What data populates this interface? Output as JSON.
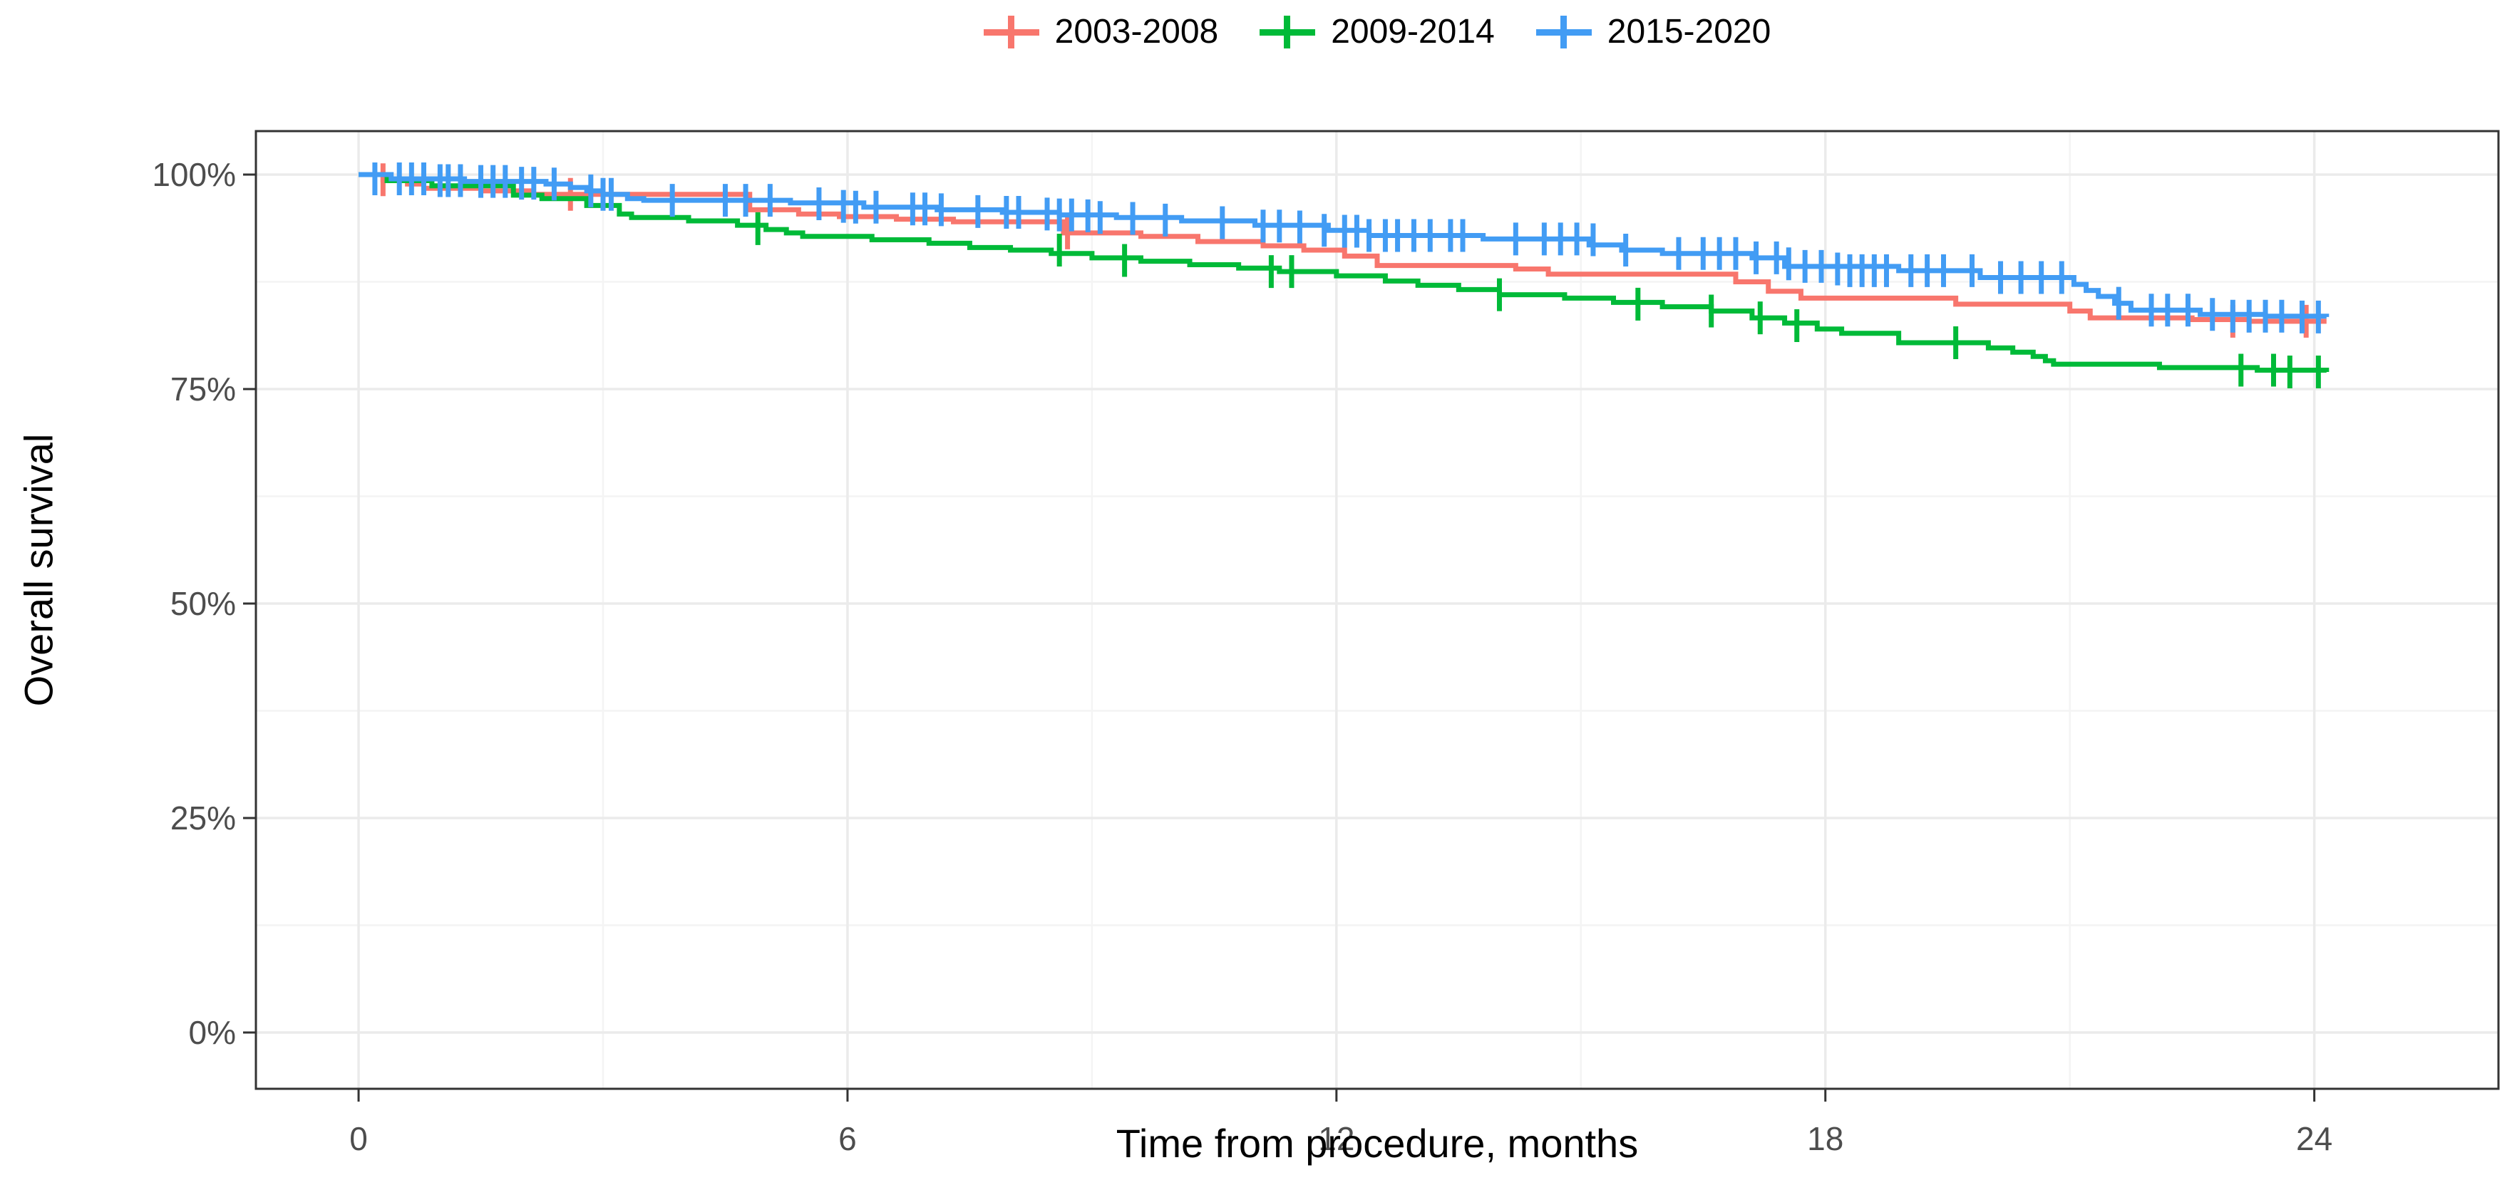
{
  "page": {
    "background": "#FFFFFF"
  },
  "legend": {
    "items": [
      {
        "label": "2003-2008",
        "color": "#F8766D"
      },
      {
        "label": "2009-2014",
        "color": "#00BA38"
      },
      {
        "label": "2015-2020",
        "color": "#429CF4"
      }
    ]
  },
  "colors": {
    "panel_border": "#333333",
    "grid_major": "#EBEBEB",
    "grid_minor": "#F4F4F4",
    "tick_mark": "#333333",
    "tick_label": "#4D4D4D",
    "axis_title": "#000000"
  },
  "chart_data": {
    "type": "line",
    "subtype": "kaplan-meier-step-survival",
    "title": "",
    "xlabel": "Time from procedure, months",
    "ylabel": "Overall survival",
    "legend_position": "top",
    "grid": "on",
    "xlim": [
      -1.26,
      26.26
    ],
    "ylim": [
      -6.56,
      105.07
    ],
    "x_ticks": [
      {
        "value": 0,
        "label": "0"
      },
      {
        "value": 6,
        "label": "6"
      },
      {
        "value": 12,
        "label": "12"
      },
      {
        "value": 18,
        "label": "18"
      },
      {
        "value": 24,
        "label": "24"
      }
    ],
    "x_minor": [
      3,
      9,
      15,
      21
    ],
    "y_ticks": [
      {
        "value": 0,
        "label": "0%"
      },
      {
        "value": 25,
        "label": "25%"
      },
      {
        "value": 50,
        "label": "50%"
      },
      {
        "value": 75,
        "label": "75%"
      },
      {
        "value": 100,
        "label": "100%"
      }
    ],
    "y_minor": [
      12.5,
      37.5,
      62.5,
      87.5
    ],
    "series": [
      {
        "name": "2003-2008",
        "color": "#F8766D",
        "points": [
          [
            0,
            100
          ],
          [
            0.3,
            99.4
          ],
          [
            0.6,
            98.9
          ],
          [
            0.8,
            98.4
          ],
          [
            1.5,
            98.1
          ],
          [
            2.1,
            97.7
          ],
          [
            4.8,
            95.9
          ],
          [
            5.4,
            95.4
          ],
          [
            5.9,
            95.1
          ],
          [
            6.6,
            94.8
          ],
          [
            7.3,
            94.5
          ],
          [
            8.65,
            93.2
          ],
          [
            9.6,
            92.8
          ],
          [
            10.3,
            92.2
          ],
          [
            11.1,
            91.7
          ],
          [
            11.6,
            91.2
          ],
          [
            12.1,
            90.5
          ],
          [
            12.5,
            89.4
          ],
          [
            14.2,
            89.0
          ],
          [
            14.6,
            88.4
          ],
          [
            16.9,
            87.5
          ],
          [
            17.3,
            86.4
          ],
          [
            17.7,
            85.6
          ],
          [
            19.6,
            84.9
          ],
          [
            21.0,
            84.1
          ],
          [
            21.25,
            83.3
          ],
          [
            22.5,
            83.1
          ],
          [
            23.2,
            82.9
          ],
          [
            24.15,
            82.9
          ]
        ],
        "censors": [
          [
            0.3,
            99.4
          ],
          [
            2.6,
            97.7
          ],
          [
            8.7,
            93.2
          ],
          [
            23.0,
            82.9
          ],
          [
            23.9,
            82.9
          ]
        ]
      },
      {
        "name": "2009-2014",
        "color": "#00BA38",
        "points": [
          [
            0,
            100
          ],
          [
            0.35,
            99.3
          ],
          [
            0.9,
            98.7
          ],
          [
            1.9,
            97.6
          ],
          [
            2.25,
            97.2
          ],
          [
            2.8,
            96.4
          ],
          [
            3.2,
            95.4
          ],
          [
            3.35,
            95.0
          ],
          [
            4.05,
            94.6
          ],
          [
            4.65,
            94.1
          ],
          [
            5.0,
            93.6
          ],
          [
            5.25,
            93.2
          ],
          [
            5.45,
            92.8
          ],
          [
            6.3,
            92.4
          ],
          [
            7.0,
            92.0
          ],
          [
            7.5,
            91.5
          ],
          [
            8.0,
            91.2
          ],
          [
            8.5,
            90.8
          ],
          [
            9.0,
            90.3
          ],
          [
            9.6,
            89.9
          ],
          [
            10.2,
            89.5
          ],
          [
            10.8,
            89.1
          ],
          [
            11.3,
            88.7
          ],
          [
            12.0,
            88.2
          ],
          [
            12.6,
            87.6
          ],
          [
            13.0,
            87.1
          ],
          [
            13.5,
            86.6
          ],
          [
            14.0,
            86.0
          ],
          [
            14.8,
            85.6
          ],
          [
            15.4,
            85.1
          ],
          [
            16.0,
            84.6
          ],
          [
            16.6,
            84.1
          ],
          [
            17.1,
            83.3
          ],
          [
            17.5,
            82.7
          ],
          [
            17.9,
            82.0
          ],
          [
            18.2,
            81.5
          ],
          [
            18.9,
            80.4
          ],
          [
            20.0,
            79.8
          ],
          [
            20.3,
            79.3
          ],
          [
            20.55,
            78.8
          ],
          [
            20.7,
            78.3
          ],
          [
            20.8,
            77.9
          ],
          [
            22.1,
            77.5
          ],
          [
            23.3,
            77.2
          ],
          [
            24.15,
            77.0
          ]
        ],
        "censors": [
          [
            4.9,
            93.7
          ],
          [
            8.6,
            91.2
          ],
          [
            9.4,
            90.0
          ],
          [
            11.2,
            88.7
          ],
          [
            11.45,
            88.7
          ],
          [
            14.0,
            86.0
          ],
          [
            15.7,
            84.9
          ],
          [
            16.6,
            84.1
          ],
          [
            17.2,
            83.3
          ],
          [
            17.65,
            82.4
          ],
          [
            19.6,
            80.4
          ],
          [
            23.1,
            77.2
          ],
          [
            23.5,
            77.2
          ],
          [
            23.7,
            77.0
          ],
          [
            24.05,
            77.0
          ]
        ]
      },
      {
        "name": "2015-2020",
        "color": "#429CF4",
        "points": [
          [
            0,
            100
          ],
          [
            0.4,
            99.5
          ],
          [
            1.3,
            99.2
          ],
          [
            2.3,
            98.9
          ],
          [
            2.6,
            98.5
          ],
          [
            2.8,
            98.1
          ],
          [
            3.0,
            97.7
          ],
          [
            3.3,
            97.2
          ],
          [
            3.5,
            97.0
          ],
          [
            5.3,
            96.7
          ],
          [
            6.2,
            96.2
          ],
          [
            7.1,
            95.9
          ],
          [
            7.9,
            95.6
          ],
          [
            8.6,
            95.3
          ],
          [
            9.3,
            95.0
          ],
          [
            10.1,
            94.6
          ],
          [
            11.0,
            94.1
          ],
          [
            11.9,
            93.5
          ],
          [
            12.4,
            92.9
          ],
          [
            13.8,
            92.5
          ],
          [
            15.1,
            91.8
          ],
          [
            15.5,
            91.2
          ],
          [
            16.0,
            90.8
          ],
          [
            17.1,
            90.3
          ],
          [
            17.5,
            89.3
          ],
          [
            18.9,
            88.8
          ],
          [
            19.9,
            88.0
          ],
          [
            21.05,
            87.2
          ],
          [
            21.2,
            86.5
          ],
          [
            21.35,
            85.8
          ],
          [
            21.55,
            85.0
          ],
          [
            21.75,
            84.2
          ],
          [
            22.6,
            83.7
          ],
          [
            23.4,
            83.5
          ],
          [
            24.15,
            83.4
          ]
        ],
        "censors": [
          [
            0.2,
            99.5
          ],
          [
            0.5,
            99.5
          ],
          [
            0.65,
            99.5
          ],
          [
            0.8,
            99.5
          ],
          [
            1.0,
            99.3
          ],
          [
            1.1,
            99.3
          ],
          [
            1.25,
            99.3
          ],
          [
            1.5,
            99.2
          ],
          [
            1.65,
            99.2
          ],
          [
            1.8,
            99.2
          ],
          [
            2.0,
            99.0
          ],
          [
            2.15,
            99.0
          ],
          [
            2.4,
            98.9
          ],
          [
            2.85,
            98.1
          ],
          [
            3.0,
            97.7
          ],
          [
            3.1,
            97.7
          ],
          [
            3.85,
            97.0
          ],
          [
            4.5,
            97.0
          ],
          [
            4.75,
            97.0
          ],
          [
            5.05,
            97.0
          ],
          [
            5.65,
            96.6
          ],
          [
            5.95,
            96.3
          ],
          [
            6.1,
            96.2
          ],
          [
            6.35,
            96.2
          ],
          [
            6.8,
            96.0
          ],
          [
            6.95,
            96.0
          ],
          [
            7.15,
            95.9
          ],
          [
            7.6,
            95.7
          ],
          [
            7.95,
            95.6
          ],
          [
            8.1,
            95.6
          ],
          [
            8.45,
            95.4
          ],
          [
            8.6,
            95.3
          ],
          [
            8.75,
            95.3
          ],
          [
            8.95,
            95.2
          ],
          [
            9.1,
            95.0
          ],
          [
            9.5,
            94.9
          ],
          [
            9.9,
            94.7
          ],
          [
            10.6,
            94.4
          ],
          [
            11.1,
            94.0
          ],
          [
            11.3,
            94.0
          ],
          [
            11.55,
            93.9
          ],
          [
            11.85,
            93.5
          ],
          [
            12.1,
            93.4
          ],
          [
            12.25,
            93.4
          ],
          [
            12.4,
            92.9
          ],
          [
            12.6,
            92.9
          ],
          [
            12.75,
            92.9
          ],
          [
            12.95,
            92.9
          ],
          [
            13.15,
            92.9
          ],
          [
            13.4,
            92.9
          ],
          [
            13.55,
            92.9
          ],
          [
            14.2,
            92.5
          ],
          [
            14.55,
            92.5
          ],
          [
            14.75,
            92.5
          ],
          [
            14.95,
            92.5
          ],
          [
            15.15,
            92.4
          ],
          [
            15.55,
            91.2
          ],
          [
            16.2,
            90.8
          ],
          [
            16.5,
            90.8
          ],
          [
            16.7,
            90.8
          ],
          [
            16.9,
            90.8
          ],
          [
            17.15,
            90.3
          ],
          [
            17.4,
            90.3
          ],
          [
            17.55,
            89.6
          ],
          [
            17.75,
            89.3
          ],
          [
            17.95,
            89.3
          ],
          [
            18.15,
            89.0
          ],
          [
            18.3,
            88.8
          ],
          [
            18.45,
            88.8
          ],
          [
            18.6,
            88.8
          ],
          [
            18.75,
            88.8
          ],
          [
            19.05,
            88.8
          ],
          [
            19.25,
            88.8
          ],
          [
            19.45,
            88.8
          ],
          [
            19.8,
            88.8
          ],
          [
            20.15,
            88.0
          ],
          [
            20.4,
            88.0
          ],
          [
            20.65,
            88.0
          ],
          [
            20.9,
            88.0
          ],
          [
            21.6,
            85.0
          ],
          [
            22.0,
            84.2
          ],
          [
            22.2,
            84.2
          ],
          [
            22.45,
            84.2
          ],
          [
            22.75,
            83.7
          ],
          [
            23.0,
            83.5
          ],
          [
            23.2,
            83.5
          ],
          [
            23.4,
            83.5
          ],
          [
            23.6,
            83.5
          ],
          [
            23.85,
            83.4
          ],
          [
            24.05,
            83.4
          ]
        ]
      }
    ]
  }
}
